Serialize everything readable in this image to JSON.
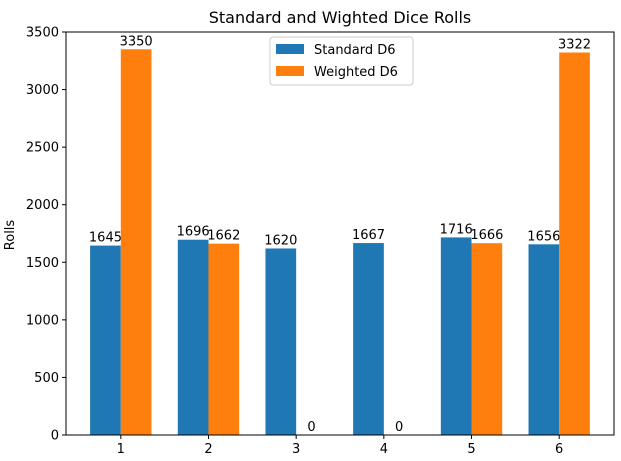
{
  "chart_data": {
    "type": "bar",
    "title": "Standard and Wighted Dice Rolls",
    "xlabel": "",
    "ylabel": "Rolls",
    "categories": [
      "1",
      "2",
      "3",
      "4",
      "5",
      "6"
    ],
    "series": [
      {
        "name": "Standard D6",
        "color": "#1f77b4",
        "values": [
          1645,
          1696,
          1620,
          1667,
          1716,
          1656
        ]
      },
      {
        "name": "Weighted D6",
        "color": "#ff7f0e",
        "values": [
          3350,
          1662,
          0,
          0,
          1666,
          3322
        ]
      }
    ],
    "ylim": [
      0,
      3500
    ],
    "yticks": [
      0,
      500,
      1000,
      1500,
      2000,
      2500,
      3000,
      3500
    ],
    "grid": false,
    "legend_position": "top-center"
  }
}
